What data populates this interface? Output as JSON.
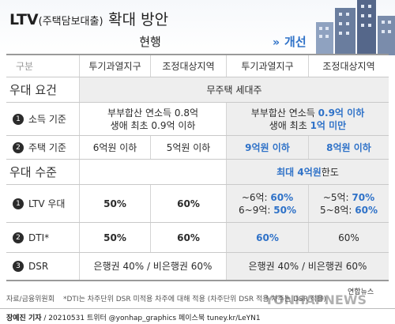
{
  "title": {
    "prefix": "LTV",
    "paren": "(주택담보대출)",
    "main": "확대 방안"
  },
  "headers": {
    "current": "현행",
    "improved": "개선",
    "improved_arrow": "»"
  },
  "columns": {
    "category": "구분",
    "c1": "투기과열지구",
    "c2": "조정대상지역",
    "c3": "투기과열지구",
    "c4": "조정대상지역"
  },
  "sections": {
    "eligibility": "우대 요건",
    "level": "우대 수준"
  },
  "rows": {
    "target": {
      "current": "무주택 세대주"
    },
    "income": {
      "num": "1",
      "label": "소득 기준",
      "current_l1": "부부합산 연소득 0.8억",
      "current_l2": "생애 최초 0.9억 이하",
      "improved_l1a": "부부합산 연소득 ",
      "improved_l1b": "0.9억 이하",
      "improved_l2a": "생애 최초 ",
      "improved_l2b": "1억 미만"
    },
    "house": {
      "num": "2",
      "label": "주택 기준",
      "c1": "6억원 이하",
      "c2": "5억원 이하",
      "c3": "9억원 이하",
      "c4": "8억원 이하"
    },
    "limit": {
      "improved_a": "최대 4억원",
      "improved_b": " 한도"
    },
    "ltv": {
      "num": "1",
      "label": "LTV 우대",
      "c1": "50%",
      "c2": "60%",
      "c3_l1a": "~6억: ",
      "c3_l1b": "60%",
      "c3_l2a": "6~9억: ",
      "c3_l2b": "50%",
      "c4_l1a": "~5억: ",
      "c4_l1b": "70%",
      "c4_l2a": "5~8억: ",
      "c4_l2b": "60%"
    },
    "dti": {
      "num": "2",
      "label": "DTI*",
      "c1": "50%",
      "c2": "60%",
      "c3": "60%",
      "c4": "60%"
    },
    "dsr": {
      "num": "3",
      "label": "DSR",
      "current": "은행권 40% / 비은행권 60%",
      "improved": "은행권 40% / 비은행권 60%"
    }
  },
  "footer": {
    "source": "자료/금융위원회",
    "note": "*DTI는 차주단위 DSR 미적용 차주에 대해 적용 (차주단위 DSR 적용 차주는 DSR 적용)",
    "credit_name": "장예진 기자",
    "credit_rest": " / 20210531 트위터 @yonhap_graphics  페이스북 tuney.kr/LeYN1",
    "watermark": "YONHAPNEWS",
    "logo": "연합뉴스"
  },
  "colors": {
    "accent_blue": "#2f72c8",
    "shade": "#eeeeee",
    "building": "#5d6f8c"
  }
}
